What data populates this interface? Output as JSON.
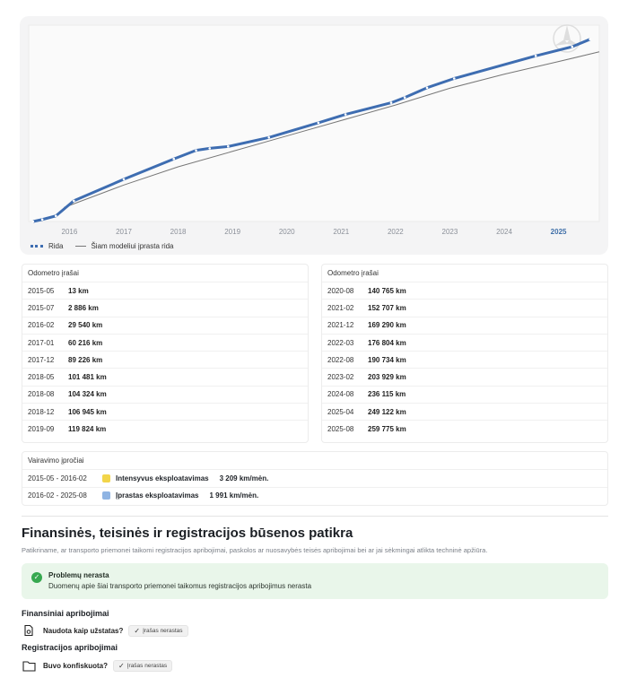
{
  "chart_data": {
    "type": "line",
    "title": "",
    "xlabel": "",
    "ylabel": "",
    "x_ticks": [
      "2016",
      "2017",
      "2018",
      "2019",
      "2020",
      "2021",
      "2022",
      "2023",
      "2024",
      "2025"
    ],
    "active_tick": "2025",
    "x_range": [
      2015.25,
      2025.75
    ],
    "y_range": [
      0,
      280000
    ],
    "grid": false,
    "legend_position": "bottom-left",
    "series": [
      {
        "name": "Rida",
        "color": "#3e6db1",
        "style": "dotted-markers",
        "points": [
          [
            2015.33,
            13
          ],
          [
            2015.5,
            2886
          ],
          [
            2015.75,
            8000
          ],
          [
            2016.08,
            29540
          ],
          [
            2017.0,
            60216
          ],
          [
            2017.92,
            89226
          ],
          [
            2018.33,
            101481
          ],
          [
            2018.58,
            104324
          ],
          [
            2018.92,
            106945
          ],
          [
            2019.67,
            119824
          ],
          [
            2020.58,
            140765
          ],
          [
            2021.08,
            152707
          ],
          [
            2021.92,
            169290
          ],
          [
            2022.17,
            176804
          ],
          [
            2022.58,
            190734
          ],
          [
            2023.08,
            203929
          ],
          [
            2024.58,
            236115
          ],
          [
            2025.25,
            249122
          ],
          [
            2025.58,
            259775
          ]
        ]
      },
      {
        "name": "Šiam modeliui įprasta rida",
        "color": "#777777",
        "style": "solid",
        "points": [
          [
            2015.9,
            20000
          ],
          [
            2017.0,
            52000
          ],
          [
            2018.0,
            78000
          ],
          [
            2019.0,
            100000
          ],
          [
            2020.0,
            122000
          ],
          [
            2021.0,
            144000
          ],
          [
            2022.0,
            166000
          ],
          [
            2023.0,
            190000
          ],
          [
            2024.0,
            210000
          ],
          [
            2025.0,
            228000
          ],
          [
            2025.75,
            242000
          ]
        ]
      }
    ]
  },
  "legend": {
    "rida": "Rida",
    "typical": "Šiam modeliui įprasta rida"
  },
  "odometer": {
    "header": "Odometro įrašai",
    "left": [
      {
        "date": "2015-05",
        "value": "13 km"
      },
      {
        "date": "2015-07",
        "value": "2 886 km"
      },
      {
        "date": "2016-02",
        "value": "29 540 km"
      },
      {
        "date": "2017-01",
        "value": "60 216 km"
      },
      {
        "date": "2017-12",
        "value": "89 226 km"
      },
      {
        "date": "2018-05",
        "value": "101 481 km"
      },
      {
        "date": "2018-08",
        "value": "104 324 km"
      },
      {
        "date": "2018-12",
        "value": "106 945 km"
      },
      {
        "date": "2019-09",
        "value": "119 824 km"
      }
    ],
    "right": [
      {
        "date": "2020-08",
        "value": "140 765 km"
      },
      {
        "date": "2021-02",
        "value": "152 707 km"
      },
      {
        "date": "2021-12",
        "value": "169 290 km"
      },
      {
        "date": "2022-03",
        "value": "176 804 km"
      },
      {
        "date": "2022-08",
        "value": "190 734 km"
      },
      {
        "date": "2023-02",
        "value": "203 929 km"
      },
      {
        "date": "2024-08",
        "value": "236 115 km"
      },
      {
        "date": "2025-04",
        "value": "249 122 km"
      },
      {
        "date": "2025-08",
        "value": "259 775 km"
      }
    ]
  },
  "habits": {
    "header": "Vairavimo įpročiai",
    "rows": [
      {
        "period": "2015-05 - 2016-02",
        "color": "#f2d54a",
        "type": "Intensyvus eksploatavimas",
        "rate": "3 209 km/mėn."
      },
      {
        "period": "2016-02 - 2025-08",
        "color": "#8fb4e3",
        "type": "Įprastas eksploatavimas",
        "rate": "1 991 km/mėn."
      }
    ]
  },
  "section": {
    "title": "Finansinės, teisinės ir registracijos būsenos patikra",
    "description": "Patikriname, ar transporto priemonei taikomi registracijos apribojimai, paskolos ar nuosavybės teisės apribojimai bei ar jai sėkmingai atlikta techninė apžiūra."
  },
  "alert": {
    "title": "Problemų nerasta",
    "message": "Duomenų apie šiai transporto priemonei taikomus registracijos apribojimus nerasta"
  },
  "financial": {
    "title": "Finansiniai apribojimai",
    "question": "Naudota kaip užstatas?",
    "badge": "Įrašas nerastas"
  },
  "registration": {
    "title": "Registracijos apribojimai",
    "question": "Buvo konfiskuota?",
    "badge": "Įrašas nerastas"
  }
}
